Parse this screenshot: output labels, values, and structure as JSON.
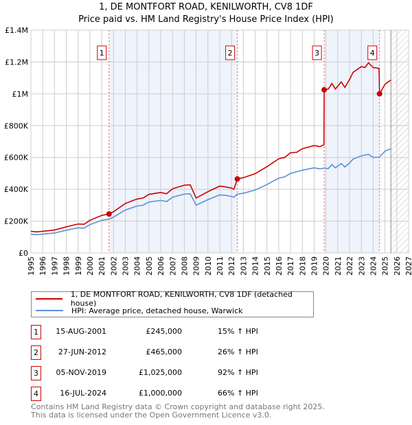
{
  "chart_data": {
    "type": "line",
    "title": "1, DE MONTFORT ROAD, KENILWORTH, CV8 1DF",
    "subtitle": "Price paid vs. HM Land Registry's House Price Index (HPI)",
    "xlim": [
      1995,
      2027
    ],
    "ylim": [
      0,
      1400000
    ],
    "x_ticks": [
      "1995",
      "1996",
      "1997",
      "1998",
      "1999",
      "2000",
      "2001",
      "2002",
      "2003",
      "2004",
      "2005",
      "2006",
      "2007",
      "2008",
      "2009",
      "2010",
      "2011",
      "2012",
      "2013",
      "2014",
      "2015",
      "2016",
      "2017",
      "2018",
      "2019",
      "2020",
      "2021",
      "2022",
      "2023",
      "2024",
      "2025",
      "2026",
      "2027"
    ],
    "y_ticks": [
      {
        "v": 0,
        "label": "£0"
      },
      {
        "v": 200000,
        "label": "£200K"
      },
      {
        "v": 400000,
        "label": "£400K"
      },
      {
        "v": 600000,
        "label": "£600K"
      },
      {
        "v": 800000,
        "label": "£800K"
      },
      {
        "v": 1000000,
        "label": "£1M"
      },
      {
        "v": 1200000,
        "label": "£1.2M"
      },
      {
        "v": 1400000,
        "label": "£1.4M"
      }
    ],
    "grid": true,
    "forecast_from": 2025.5,
    "shaded_periods": [
      [
        2001.62,
        2012.49
      ],
      [
        2019.85,
        2024.54
      ]
    ],
    "series": [
      {
        "name": "1, DE MONTFORT ROAD, KENILWORTH, CV8 1DF (detached house)",
        "color": "#cc0000",
        "points": [
          [
            1995,
            136000
          ],
          [
            1995.5,
            132000
          ],
          [
            1996,
            136000
          ],
          [
            1997,
            144000
          ],
          [
            1998,
            164000
          ],
          [
            1999,
            182000
          ],
          [
            1999.5,
            180000
          ],
          [
            2000,
            205000
          ],
          [
            2001,
            236000
          ],
          [
            2001.62,
            245000
          ],
          [
            2002,
            259000
          ],
          [
            2003,
            311000
          ],
          [
            2004,
            339000
          ],
          [
            2004.5,
            345000
          ],
          [
            2005,
            368000
          ],
          [
            2006,
            380000
          ],
          [
            2006.5,
            372000
          ],
          [
            2007,
            403000
          ],
          [
            2008,
            426000
          ],
          [
            2008.5,
            428000
          ],
          [
            2009,
            345000
          ],
          [
            2010,
            385000
          ],
          [
            2011,
            420000
          ],
          [
            2011.5,
            415000
          ],
          [
            2012,
            408000
          ],
          [
            2012.2,
            400000
          ],
          [
            2012.49,
            465000
          ],
          [
            2013,
            473000
          ],
          [
            2014,
            498000
          ],
          [
            2015,
            542000
          ],
          [
            2016,
            592000
          ],
          [
            2016.5,
            600000
          ],
          [
            2017,
            630000
          ],
          [
            2017.5,
            632000
          ],
          [
            2018,
            655000
          ],
          [
            2019,
            675000
          ],
          [
            2019.5,
            668000
          ],
          [
            2019.83,
            680000
          ],
          [
            2019.85,
            1025000
          ],
          [
            2020.2,
            1030000
          ],
          [
            2020.5,
            1065000
          ],
          [
            2020.8,
            1030000
          ],
          [
            2021.3,
            1075000
          ],
          [
            2021.6,
            1040000
          ],
          [
            2022,
            1090000
          ],
          [
            2022.3,
            1135000
          ],
          [
            2023,
            1171000
          ],
          [
            2023.3,
            1165000
          ],
          [
            2023.6,
            1195000
          ],
          [
            2024,
            1165000
          ],
          [
            2024.5,
            1160000
          ],
          [
            2024.54,
            1000000
          ],
          [
            2025,
            1060000
          ],
          [
            2025.5,
            1087000
          ]
        ]
      },
      {
        "name": "HPI: Average price, detached house, Warwick",
        "color": "#5b8fd6",
        "points": [
          [
            1995,
            118000
          ],
          [
            1995.5,
            115000
          ],
          [
            1996,
            118000
          ],
          [
            1997,
            125000
          ],
          [
            1998,
            143000
          ],
          [
            1999,
            158000
          ],
          [
            1999.5,
            156000
          ],
          [
            2000,
            178000
          ],
          [
            2001,
            205000
          ],
          [
            2001.62,
            213000
          ],
          [
            2002,
            225000
          ],
          [
            2003,
            270000
          ],
          [
            2004,
            295000
          ],
          [
            2004.5,
            300000
          ],
          [
            2005,
            320000
          ],
          [
            2006,
            330000
          ],
          [
            2006.5,
            323000
          ],
          [
            2007,
            350000
          ],
          [
            2008,
            370000
          ],
          [
            2008.5,
            372000
          ],
          [
            2009,
            300000
          ],
          [
            2010,
            335000
          ],
          [
            2011,
            365000
          ],
          [
            2011.5,
            362000
          ],
          [
            2012,
            355000
          ],
          [
            2012.2,
            350000
          ],
          [
            2012.49,
            370000
          ],
          [
            2013,
            375000
          ],
          [
            2014,
            395000
          ],
          [
            2015,
            430000
          ],
          [
            2016,
            470000
          ],
          [
            2016.5,
            478000
          ],
          [
            2017,
            500000
          ],
          [
            2018,
            520000
          ],
          [
            2019,
            535000
          ],
          [
            2019.5,
            528000
          ],
          [
            2019.85,
            533000
          ],
          [
            2020.2,
            530000
          ],
          [
            2020.5,
            555000
          ],
          [
            2020.8,
            535000
          ],
          [
            2021.3,
            562000
          ],
          [
            2021.6,
            540000
          ],
          [
            2022,
            565000
          ],
          [
            2022.3,
            590000
          ],
          [
            2023,
            610000
          ],
          [
            2023.6,
            620000
          ],
          [
            2024,
            600000
          ],
          [
            2024.54,
            602000
          ],
          [
            2025,
            640000
          ],
          [
            2025.5,
            655000
          ]
        ]
      }
    ],
    "sales": [
      {
        "id": "1",
        "date": "15-AUG-2001",
        "price": "£245,000",
        "hpi": "15% ↑ HPI",
        "x": 2001.62,
        "y": 245000
      },
      {
        "id": "2",
        "date": "27-JUN-2012",
        "price": "£465,000",
        "hpi": "26% ↑ HPI",
        "x": 2012.49,
        "y": 465000
      },
      {
        "id": "3",
        "date": "05-NOV-2019",
        "price": "£1,025,000",
        "hpi": "92% ↑ HPI",
        "x": 2019.85,
        "y": 1025000
      },
      {
        "id": "4",
        "date": "16-JUL-2024",
        "price": "£1,000,000",
        "hpi": "66% ↑ HPI",
        "x": 2024.54,
        "y": 1000000
      }
    ]
  },
  "footer": {
    "line1": "Contains HM Land Registry data © Crown copyright and database right 2025.",
    "line2": "This data is licensed under the Open Government Licence v3.0."
  }
}
